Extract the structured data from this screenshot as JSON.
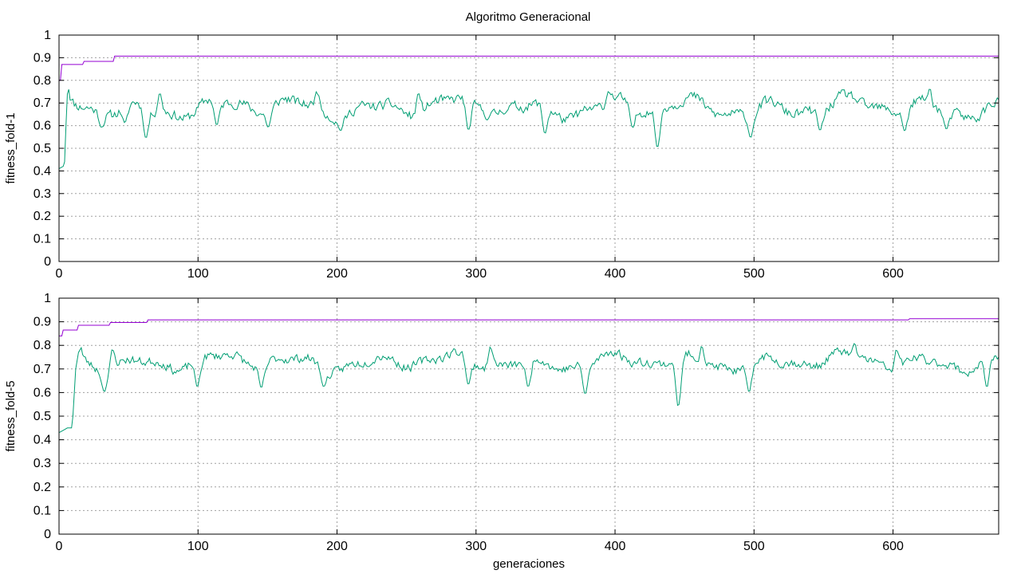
{
  "title": "Algoritmo Generacional",
  "colors": {
    "best": "#9400d3",
    "mean": "#009e73",
    "grid": "#a0a0a0",
    "axis": "#000000"
  },
  "chart_data": [
    {
      "type": "line",
      "ylabel": "fitness_fold-1",
      "xlabel": "",
      "xlim": [
        0,
        676
      ],
      "ylim": [
        0,
        1
      ],
      "grid": true,
      "xticks": [
        0,
        100,
        200,
        300,
        400,
        500,
        600
      ],
      "yticks": [
        0,
        0.1,
        0.2,
        0.3,
        0.4,
        0.5,
        0.6,
        0.7,
        0.8,
        0.9,
        1
      ],
      "series": [
        {
          "key": "best",
          "color": "#9400d3",
          "points": [
            [
              0,
              0.8
            ],
            [
              1,
              0.8
            ],
            [
              2,
              0.87
            ],
            [
              17,
              0.87
            ],
            [
              18,
              0.884
            ],
            [
              39,
              0.884
            ],
            [
              40,
              0.907
            ],
            [
              676,
              0.907
            ]
          ]
        },
        {
          "key": "mean",
          "color": "#009e73",
          "start": [
            [
              0,
              0.41
            ],
            [
              3,
              0.42
            ],
            [
              4,
              0.44
            ],
            [
              5,
              0.6
            ],
            [
              6,
              0.74
            ],
            [
              7,
              0.76
            ]
          ],
          "mean": 0.68,
          "amp": 0.055,
          "noise": 0.035,
          "seed": 11,
          "dips": [
            [
              30,
              0.58
            ],
            [
              47,
              0.6
            ],
            [
              62,
              0.52
            ],
            [
              113,
              0.58
            ],
            [
              150,
              0.58
            ],
            [
              202,
              0.57
            ],
            [
              294,
              0.55
            ],
            [
              349,
              0.54
            ],
            [
              412,
              0.57
            ],
            [
              430,
              0.47
            ],
            [
              497,
              0.53
            ],
            [
              547,
              0.56
            ],
            [
              608,
              0.56
            ],
            [
              638,
              0.57
            ]
          ],
          "peaks": [
            [
              72,
              0.77
            ],
            [
              185,
              0.77
            ],
            [
              258,
              0.77
            ],
            [
              395,
              0.77
            ],
            [
              626,
              0.78
            ]
          ],
          "x_end": 676
        }
      ]
    },
    {
      "type": "line",
      "ylabel": "fitness_fold-5",
      "xlabel": "generaciones",
      "xlim": [
        0,
        676
      ],
      "ylim": [
        0,
        1
      ],
      "grid": true,
      "xticks": [
        0,
        100,
        200,
        300,
        400,
        500,
        600
      ],
      "yticks": [
        0,
        0.1,
        0.2,
        0.3,
        0.4,
        0.5,
        0.6,
        0.7,
        0.8,
        0.9,
        1
      ],
      "series": [
        {
          "key": "best",
          "color": "#9400d3",
          "points": [
            [
              0,
              0.84
            ],
            [
              2,
              0.84
            ],
            [
              3,
              0.865
            ],
            [
              13,
              0.865
            ],
            [
              14,
              0.885
            ],
            [
              36,
              0.885
            ],
            [
              37,
              0.897
            ],
            [
              63,
              0.897
            ],
            [
              64,
              0.908
            ],
            [
              611,
              0.908
            ],
            [
              612,
              0.913
            ],
            [
              676,
              0.913
            ]
          ]
        },
        {
          "key": "mean",
          "color": "#009e73",
          "start": [
            [
              0,
              0.43
            ],
            [
              3,
              0.44
            ],
            [
              6,
              0.45
            ],
            [
              9,
              0.45
            ],
            [
              10,
              0.5
            ],
            [
              12,
              0.7
            ],
            [
              14,
              0.77
            ],
            [
              16,
              0.79
            ]
          ],
          "mean": 0.73,
          "amp": 0.045,
          "noise": 0.03,
          "seed": 23,
          "dips": [
            [
              32,
              0.59
            ],
            [
              99,
              0.6
            ],
            [
              145,
              0.6
            ],
            [
              190,
              0.61
            ],
            [
              294,
              0.61
            ],
            [
              337,
              0.6
            ],
            [
              378,
              0.57
            ],
            [
              445,
              0.5
            ],
            [
              496,
              0.58
            ],
            [
              667,
              0.6
            ]
          ],
          "peaks": [
            [
              38,
              0.81
            ],
            [
              310,
              0.82
            ],
            [
              462,
              0.82
            ],
            [
              572,
              0.82
            ],
            [
              602,
              0.81
            ]
          ],
          "x_end": 676
        }
      ]
    }
  ]
}
